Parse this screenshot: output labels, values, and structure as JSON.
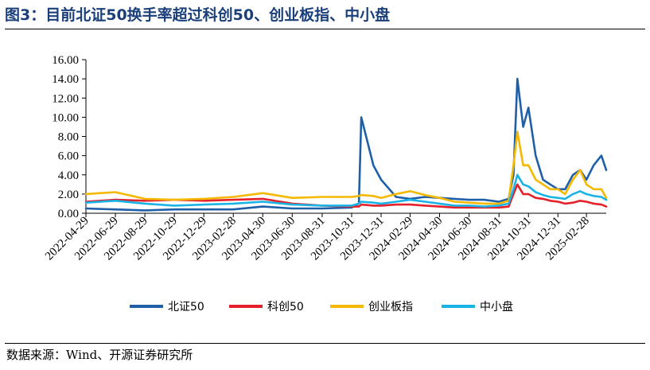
{
  "figure": {
    "title": "图3：目前北证50换手率超过科创50、创业板指、中小盘",
    "source": "数据来源：Wind、开源证券研究所"
  },
  "chart_data": {
    "type": "line",
    "title": "",
    "xlabel": "",
    "ylabel": "",
    "ylim": [
      0,
      16
    ],
    "yticks": [
      "0.00",
      "2.00",
      "4.00",
      "6.00",
      "8.00",
      "10.00",
      "12.00",
      "14.00",
      "16.00"
    ],
    "xticks": [
      "2022-04-29",
      "2022-06-29",
      "2022-08-29",
      "2022-10-29",
      "2022-12-29",
      "2023-02-28",
      "2023-04-30",
      "2023-06-30",
      "2023-08-31",
      "2023-10-31",
      "2023-12-31",
      "2024-02-29",
      "2024-04-30",
      "2024-06-30",
      "2024-08-31",
      "2024-10-31",
      "2024-12-31",
      "2025-02-28"
    ],
    "grid": false,
    "legend": "bottom",
    "x": [
      "2022-04-29",
      "2022-06-29",
      "2022-08-29",
      "2022-10-29",
      "2022-12-29",
      "2023-02-28",
      "2023-04-30",
      "2023-06-30",
      "2023-08-31",
      "2023-10-31",
      "2023-11-15",
      "2023-11-20",
      "2023-12-15",
      "2023-12-31",
      "2024-01-31",
      "2024-02-29",
      "2024-03-31",
      "2024-04-30",
      "2024-05-31",
      "2024-06-30",
      "2024-07-31",
      "2024-08-31",
      "2024-09-20",
      "2024-09-30",
      "2024-10-08",
      "2024-10-20",
      "2024-10-31",
      "2024-11-15",
      "2024-11-30",
      "2024-12-15",
      "2024-12-31",
      "2025-01-15",
      "2025-01-31",
      "2025-02-15",
      "2025-02-28",
      "2025-03-15",
      "2025-03-31",
      "2025-04-10"
    ],
    "series": [
      {
        "name": "北证50",
        "color": "#1f5fa8",
        "values": [
          0.5,
          0.4,
          0.3,
          0.4,
          0.4,
          0.4,
          0.7,
          0.5,
          0.5,
          0.6,
          1.0,
          10.0,
          5.0,
          3.5,
          1.7,
          1.5,
          1.7,
          1.6,
          1.5,
          1.4,
          1.4,
          1.2,
          1.5,
          4.0,
          14.0,
          9.0,
          11.0,
          6.0,
          3.5,
          3.0,
          2.5,
          2.5,
          4.0,
          4.5,
          3.5,
          5.0,
          6.0,
          4.5
        ]
      },
      {
        "name": "科创50",
        "color": "#e4202a",
        "values": [
          1.2,
          1.4,
          1.3,
          1.4,
          1.3,
          1.4,
          1.5,
          1.0,
          0.8,
          0.7,
          0.7,
          0.9,
          0.8,
          0.8,
          0.9,
          0.9,
          0.8,
          0.7,
          0.6,
          0.6,
          0.6,
          0.6,
          0.7,
          2.0,
          3.0,
          2.0,
          2.0,
          1.6,
          1.5,
          1.3,
          1.2,
          1.0,
          1.1,
          1.3,
          1.2,
          1.0,
          0.9,
          0.7
        ]
      },
      {
        "name": "创业板指",
        "color": "#f5b800",
        "values": [
          2.0,
          2.2,
          1.5,
          1.4,
          1.5,
          1.7,
          2.1,
          1.6,
          1.7,
          1.7,
          1.8,
          1.9,
          1.8,
          1.6,
          2.0,
          2.3,
          1.9,
          1.6,
          1.2,
          1.1,
          1.0,
          1.0,
          1.3,
          5.0,
          8.5,
          5.0,
          5.0,
          3.5,
          3.0,
          2.5,
          2.5,
          2.0,
          3.5,
          4.5,
          3.0,
          2.5,
          2.5,
          1.6
        ]
      },
      {
        "name": "中小盘",
        "color": "#1ab3e6",
        "values": [
          1.1,
          1.3,
          1.0,
          0.8,
          0.9,
          1.0,
          1.2,
          0.9,
          0.8,
          0.8,
          1.0,
          1.2,
          1.1,
          1.0,
          1.2,
          1.4,
          1.2,
          1.0,
          0.8,
          0.8,
          0.7,
          0.8,
          1.0,
          2.5,
          4.0,
          3.0,
          2.8,
          2.2,
          1.9,
          1.7,
          1.6,
          1.5,
          2.0,
          2.3,
          2.0,
          1.8,
          1.7,
          1.4
        ]
      }
    ]
  }
}
